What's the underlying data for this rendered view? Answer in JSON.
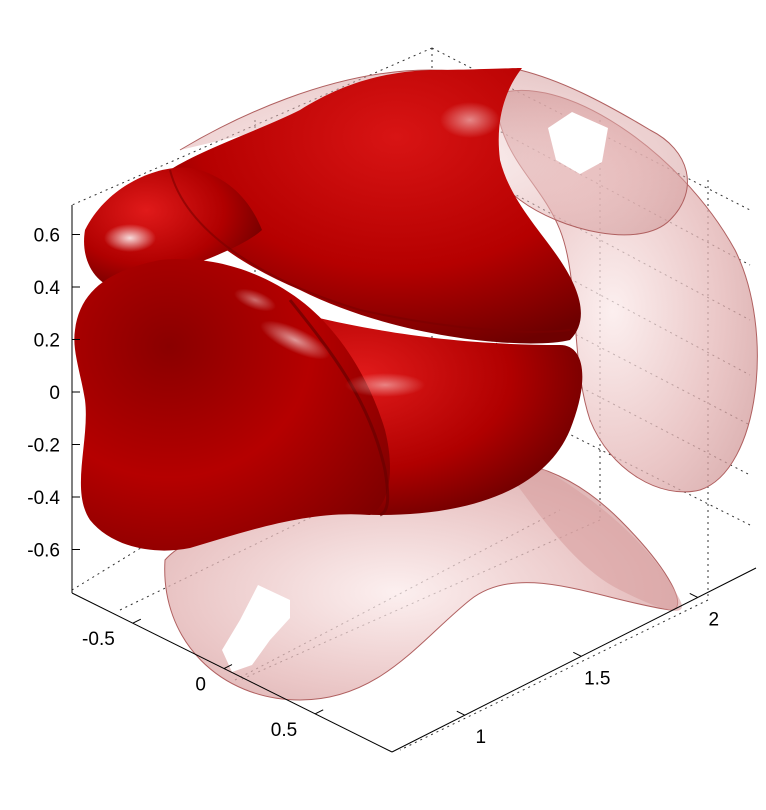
{
  "chart_data": {
    "type": "isosurface-3d",
    "title": "",
    "xlabel": "",
    "ylabel": "",
    "zlabel": "",
    "grid": true,
    "surface_color": "#c00000",
    "cap_color": "#e8b8b8",
    "x_axis": {
      "ticks": [
        -0.5,
        0,
        0.5
      ],
      "tick_labels": [
        "-0.5",
        "0",
        "0.5"
      ]
    },
    "y_axis": {
      "ticks": [
        1,
        1.5,
        2
      ],
      "tick_labels": [
        "1",
        "1.5",
        "2"
      ]
    },
    "z_axis": {
      "ticks": [
        0.6,
        0.4,
        0.2,
        0,
        -0.2,
        -0.4,
        -0.6
      ],
      "tick_labels": [
        "0.6",
        "0.4",
        "0.2",
        "0",
        "-0.2",
        "-0.4",
        "-0.6"
      ]
    }
  }
}
